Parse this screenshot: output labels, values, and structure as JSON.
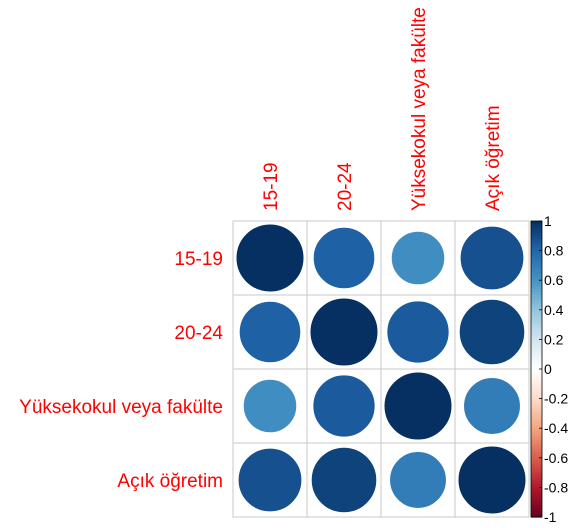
{
  "chart_data": {
    "type": "heatmap",
    "variables": [
      "15-19",
      "20-24",
      "Yüksekokul veya fakülte",
      "Açık öğretim"
    ],
    "matrix": [
      [
        1.0,
        0.82,
        0.62,
        0.88
      ],
      [
        0.82,
        1.0,
        0.84,
        0.93
      ],
      [
        0.62,
        0.84,
        1.0,
        0.7
      ],
      [
        0.88,
        0.93,
        0.7,
        1.0
      ]
    ],
    "colorbar": {
      "ticks": [
        "1",
        "0.8",
        "0.6",
        "0.4",
        "0.2",
        "0",
        "-0.2",
        "-0.4",
        "-0.6",
        "-0.8",
        "-1"
      ],
      "range": [
        -1,
        1
      ]
    },
    "label_color": "#ff0000",
    "palette": [
      "#67001f",
      "#b2182b",
      "#d6604d",
      "#f4a582",
      "#fddbc7",
      "#ffffff",
      "#d1e5f0",
      "#92c5de",
      "#4393c3",
      "#2166ac",
      "#053061"
    ]
  }
}
